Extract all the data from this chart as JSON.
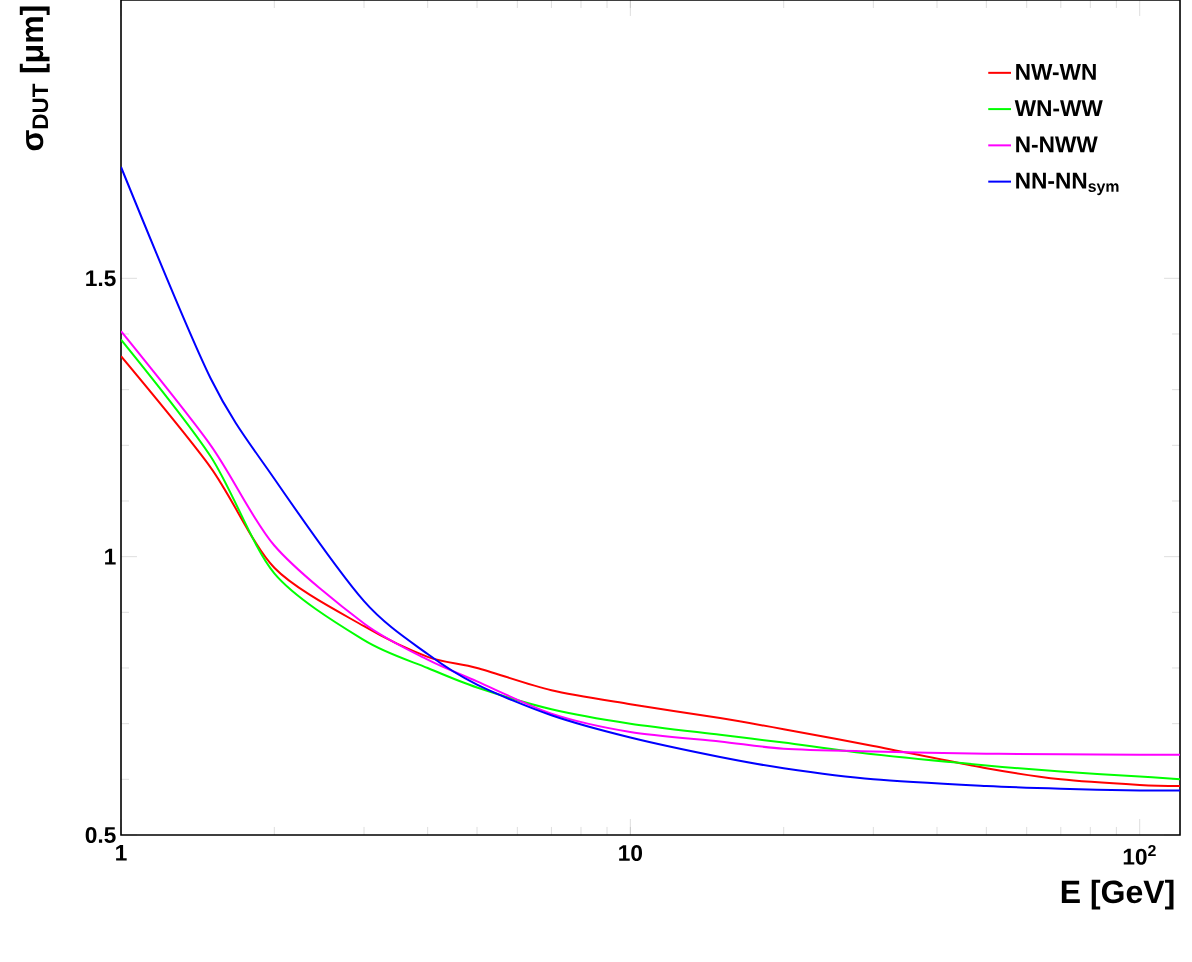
{
  "chart_data": {
    "type": "line",
    "xlabel": "E [GeV]",
    "ylabel": "σ$_{DUT}$ [μm]",
    "log": "x",
    "legend": "top right",
    "x": [
      1,
      1.5,
      2,
      3,
      4,
      5,
      7,
      10,
      15,
      20,
      30,
      50,
      70,
      100,
      120
    ],
    "xlim": [
      1,
      120
    ],
    "ylim": [
      0.5,
      2
    ],
    "xticks": [
      1,
      10,
      {
        "value": 100,
        "label": "10$^{2}$"
      }
    ],
    "yticks": [
      0.5,
      1,
      1.5
    ],
    "series": [
      {
        "name": "NW-WN",
        "color": "#ff0000",
        "values": [
          1.36,
          1.16,
          0.98,
          0.875,
          0.82,
          0.8,
          0.76,
          0.735,
          0.71,
          0.69,
          0.66,
          0.62,
          0.6,
          0.59,
          0.588
        ]
      },
      {
        "name": "WN-WW",
        "color": "#00ff00",
        "values": [
          1.39,
          1.18,
          0.97,
          0.85,
          0.8,
          0.765,
          0.726,
          0.7,
          0.68,
          0.666,
          0.645,
          0.625,
          0.614,
          0.605,
          0.6
        ]
      },
      {
        "name": "N-NWW",
        "color": "#ff00ff",
        "values": [
          1.405,
          1.2,
          1.02,
          0.88,
          0.815,
          0.776,
          0.718,
          0.685,
          0.668,
          0.655,
          0.65,
          0.646,
          0.645,
          0.644,
          0.644
        ]
      },
      {
        "name": "NN-NN$_{sym}$",
        "color": "#0000ff",
        "values": [
          1.7,
          1.32,
          1.14,
          0.92,
          0.825,
          0.77,
          0.715,
          0.675,
          0.64,
          0.62,
          0.6,
          0.588,
          0.583,
          0.58,
          0.58
        ]
      }
    ]
  }
}
